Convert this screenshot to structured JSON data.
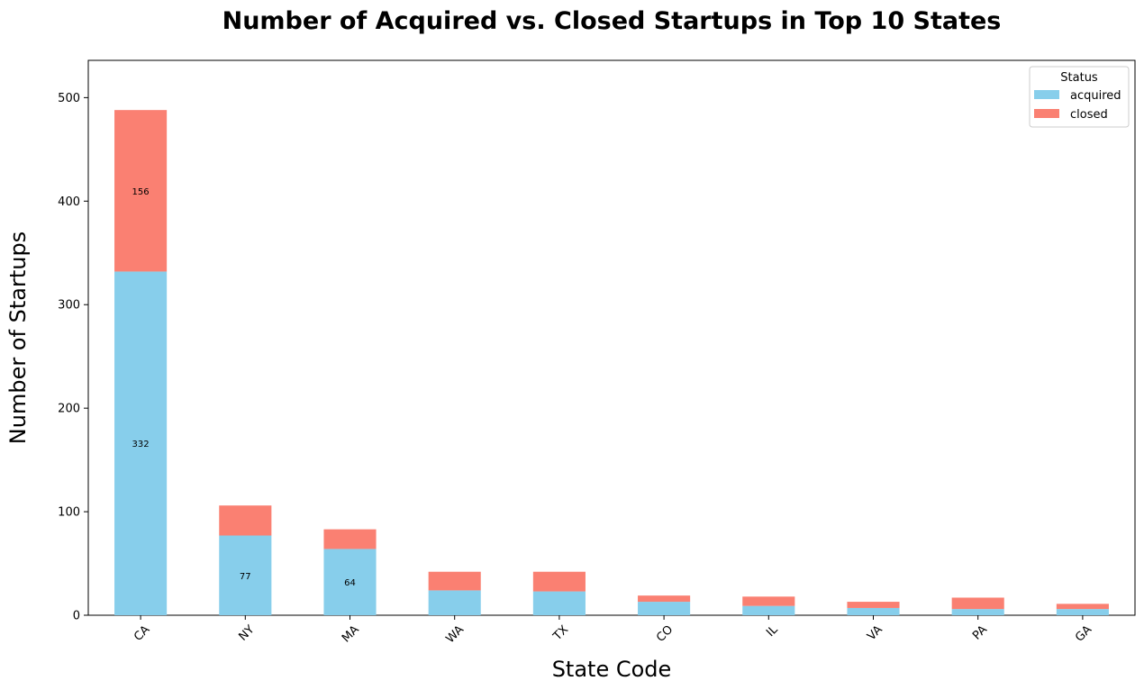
{
  "chart_data": {
    "type": "bar",
    "stacked": true,
    "title": "Number of Acquired vs. Closed Startups in Top 10 States",
    "xlabel": "State Code",
    "ylabel": "Number of Startups",
    "categories": [
      "CA",
      "NY",
      "MA",
      "WA",
      "TX",
      "CO",
      "IL",
      "VA",
      "PA",
      "GA"
    ],
    "series": [
      {
        "name": "acquired",
        "color": "#87CEEB",
        "values": [
          332,
          77,
          64,
          24,
          23,
          13,
          9,
          7,
          6,
          6
        ]
      },
      {
        "name": "closed",
        "color": "#FA8072",
        "values": [
          156,
          29,
          19,
          18,
          19,
          6,
          9,
          6,
          11,
          5
        ]
      }
    ],
    "data_labels": [
      {
        "series": 0,
        "index": 0,
        "text": "332"
      },
      {
        "series": 1,
        "index": 0,
        "text": "156"
      },
      {
        "series": 0,
        "index": 1,
        "text": "77"
      },
      {
        "series": 0,
        "index": 2,
        "text": "64"
      }
    ],
    "ylim": [
      0,
      536
    ],
    "yticks": [
      0,
      100,
      200,
      300,
      400,
      500
    ],
    "grid": false,
    "legend": {
      "title": "Status",
      "position": "top-right"
    }
  }
}
